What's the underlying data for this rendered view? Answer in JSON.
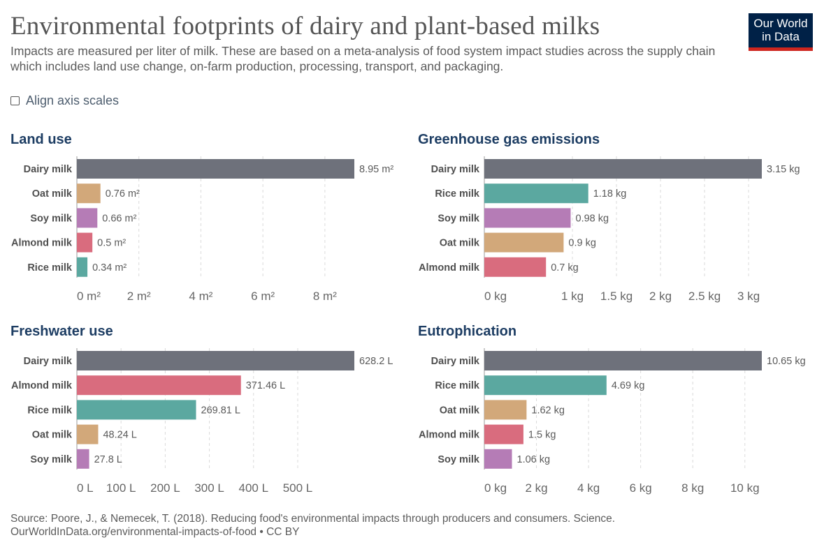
{
  "title": "Environmental footprints of dairy and plant-based milks",
  "subtitle": "Impacts are measured per liter of milk. These are based on a meta-analysis of food system impact studies across the supply chain which includes land use change, on-farm production, processing, transport, and packaging.",
  "logo": {
    "line1": "Our World",
    "line2": "in Data"
  },
  "controls": {
    "align_axis_label": "Align axis scales",
    "align_axis_checked": false
  },
  "colors": {
    "Dairy milk": "#6e717b",
    "Oat milk": "#d2a87a",
    "Soy milk": "#b57cb6",
    "Almond milk": "#d96c7e",
    "Rice milk": "#5ba8a0"
  },
  "source": {
    "line1": "Source: Poore, J., & Nemecek, T. (2018). Reducing food's environmental impacts through producers and consumers. Science.",
    "line2": "OurWorldInData.org/environmental-impacts-of-food • CC BY"
  },
  "chart_data": [
    {
      "type": "bar",
      "orientation": "horizontal",
      "title": "Land use",
      "categories": [
        "Dairy milk",
        "Oat milk",
        "Soy milk",
        "Almond milk",
        "Rice milk"
      ],
      "values": [
        8.95,
        0.76,
        0.66,
        0.5,
        0.34
      ],
      "value_labels": [
        "8.95 m²",
        "0.76 m²",
        "0.66 m²",
        "0.5 m²",
        "0.34 m²"
      ],
      "ticks": [
        0,
        2,
        4,
        6,
        8
      ],
      "tick_labels": [
        "0 m²",
        "2 m²",
        "4 m²",
        "6 m²",
        "8 m²"
      ],
      "xlim": [
        0,
        8.95
      ],
      "grid": true
    },
    {
      "type": "bar",
      "orientation": "horizontal",
      "title": "Greenhouse gas emissions",
      "categories": [
        "Dairy milk",
        "Rice milk",
        "Soy milk",
        "Oat milk",
        "Almond milk"
      ],
      "values": [
        3.15,
        1.18,
        0.98,
        0.9,
        0.7
      ],
      "value_labels": [
        "3.15 kg",
        "1.18 kg",
        "0.98 kg",
        "0.9 kg",
        "0.7 kg"
      ],
      "ticks": [
        0,
        1,
        1.5,
        2,
        2.5,
        3
      ],
      "tick_labels": [
        "0 kg",
        "1 kg",
        "1.5 kg",
        "2 kg",
        "2.5 kg",
        "3 kg"
      ],
      "xlim": [
        0,
        3.15
      ],
      "grid": true
    },
    {
      "type": "bar",
      "orientation": "horizontal",
      "title": "Freshwater use",
      "categories": [
        "Dairy milk",
        "Almond milk",
        "Rice milk",
        "Oat milk",
        "Soy milk"
      ],
      "values": [
        628.2,
        371.46,
        269.81,
        48.24,
        27.8
      ],
      "value_labels": [
        "628.2 L",
        "371.46 L",
        "269.81 L",
        "48.24 L",
        "27.8 L"
      ],
      "ticks": [
        0,
        100,
        200,
        300,
        400,
        500
      ],
      "tick_labels": [
        "0 L",
        "100 L",
        "200 L",
        "300 L",
        "400 L",
        "500 L"
      ],
      "xlim": [
        0,
        628.2
      ],
      "grid": true
    },
    {
      "type": "bar",
      "orientation": "horizontal",
      "title": "Eutrophication",
      "categories": [
        "Dairy milk",
        "Rice milk",
        "Oat milk",
        "Almond milk",
        "Soy milk"
      ],
      "values": [
        10.65,
        4.69,
        1.62,
        1.5,
        1.06
      ],
      "value_labels": [
        "10.65 kg",
        "4.69 kg",
        "1.62 kg",
        "1.5 kg",
        "1.06 kg"
      ],
      "ticks": [
        0,
        2,
        4,
        6,
        8,
        10
      ],
      "tick_labels": [
        "0 kg",
        "2 kg",
        "4 kg",
        "6 kg",
        "8 kg",
        "10 kg"
      ],
      "xlim": [
        0,
        10.65
      ],
      "grid": true
    }
  ]
}
